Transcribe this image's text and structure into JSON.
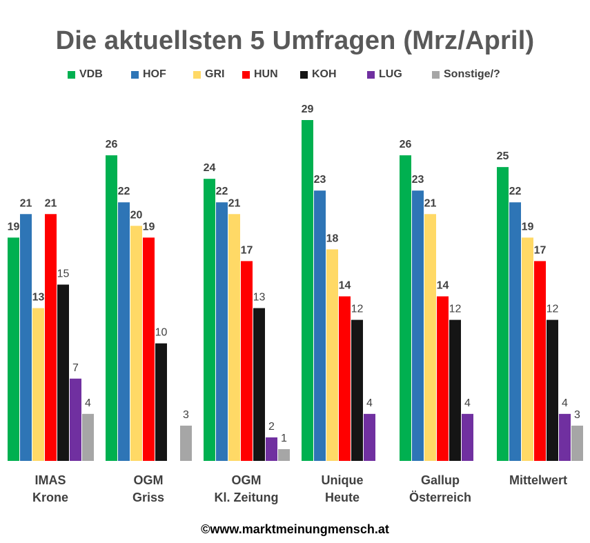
{
  "title": "Die aktuellsten 5 Umfragen (Mrz/April)",
  "footer": "©www.marktmeinungmensch.at",
  "chart_data": {
    "type": "bar",
    "title": "Die aktuellsten 5 Umfragen (Mrz/April)",
    "legend_position": "top",
    "grid": false,
    "ylim": [
      0,
      29
    ],
    "categories": [
      [
        "IMAS",
        "Krone"
      ],
      [
        "OGM",
        "Griss"
      ],
      [
        "OGM",
        "Kl. Zeitung"
      ],
      [
        "Unique",
        "Heute"
      ],
      [
        "Gallup",
        "Österreich"
      ],
      [
        "Mittelwert"
      ]
    ],
    "series": [
      {
        "name": "VDB",
        "color": "#00B050",
        "values": [
          19,
          26,
          24,
          29,
          26,
          25
        ],
        "label_bold": true
      },
      {
        "name": "HOF",
        "color": "#2E75B6",
        "values": [
          21,
          22,
          22,
          23,
          23,
          22
        ],
        "label_bold": true
      },
      {
        "name": "GRI",
        "color": "#FFD966",
        "values": [
          13,
          20,
          21,
          18,
          21,
          19
        ],
        "label_bold": true
      },
      {
        "name": "HUN",
        "color": "#FF0000",
        "values": [
          21,
          19,
          17,
          14,
          14,
          17
        ],
        "label_bold": true
      },
      {
        "name": "KOH",
        "color": "#151515",
        "values": [
          15,
          10,
          13,
          12,
          12,
          12
        ],
        "label_bold": false
      },
      {
        "name": "LUG",
        "color": "#7030A0",
        "values": [
          7,
          null,
          2,
          4,
          4,
          4
        ],
        "label_bold": false
      },
      {
        "name": "Sonstige/?",
        "color": "#A6A6A6",
        "values": [
          4,
          3,
          1,
          null,
          null,
          3
        ],
        "label_bold": false
      }
    ]
  }
}
